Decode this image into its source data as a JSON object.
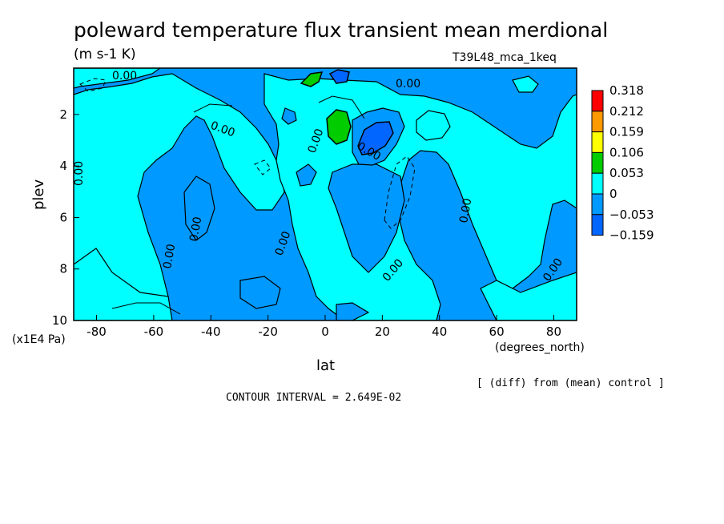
{
  "chart_data": {
    "type": "contour",
    "title": "poleward temperature flux transient mean merdional",
    "units": "(m s-1 K)",
    "experiment": "T39L48_mca_1keq",
    "xlabel": "lat",
    "xunits": "(degrees_north)",
    "ylabel": "plev",
    "yunits": "(x1E4 Pa)",
    "xlim": [
      -88,
      88
    ],
    "ylim": [
      0.2,
      10
    ],
    "y_inverted": true,
    "x_ticks": [
      -80,
      -60,
      -40,
      -20,
      0,
      20,
      40,
      60,
      80
    ],
    "x_tick_labels": [
      "-80",
      "-60",
      "-40",
      "-20",
      "0",
      "20",
      "40",
      "60",
      "80"
    ],
    "y_ticks": [
      2,
      4,
      6,
      8,
      10
    ],
    "y_tick_labels": [
      "2",
      "4",
      "6",
      "8",
      "10"
    ],
    "contour_interval": "CONTOUR INTERVAL = 2.649E-02",
    "note": "[ (diff) from (mean) control ]",
    "contour_labels": [
      "0.00",
      "0.00",
      "0.00",
      "0.00",
      "0.00",
      "0.00",
      "0.00",
      "0.00",
      "0.00",
      "0.00",
      "0.00",
      "0.00",
      "0.00"
    ],
    "colorbar": {
      "levels": [
        "0.318",
        "0.212",
        "0.159",
        "0.106",
        "0.053",
        "0",
        "−0.053",
        "−0.159"
      ],
      "colors": [
        "#ff0000",
        "#ff9900",
        "#ffff00",
        "#00cc00",
        "#00ffff",
        "#0099ff",
        "#0066ff"
      ]
    },
    "regions": [
      {
        "level": "positive_small",
        "color": "#00ffff",
        "description_points": [
          [
            -88,
            2.5
          ],
          [
            -75,
            1.5
          ]
        ]
      },
      {
        "level": "negative_small",
        "color": "#0099ff"
      },
      {
        "level": "positive_0.053",
        "color": "#00cc00",
        "centers": [
          [
            5,
            2.4
          ],
          [
            -4,
            0.45
          ]
        ]
      },
      {
        "level": "negative_0.053",
        "color": "#0066ff",
        "centers": [
          [
            18,
            2.6
          ],
          [
            5,
            0.3
          ]
        ]
      }
    ]
  }
}
